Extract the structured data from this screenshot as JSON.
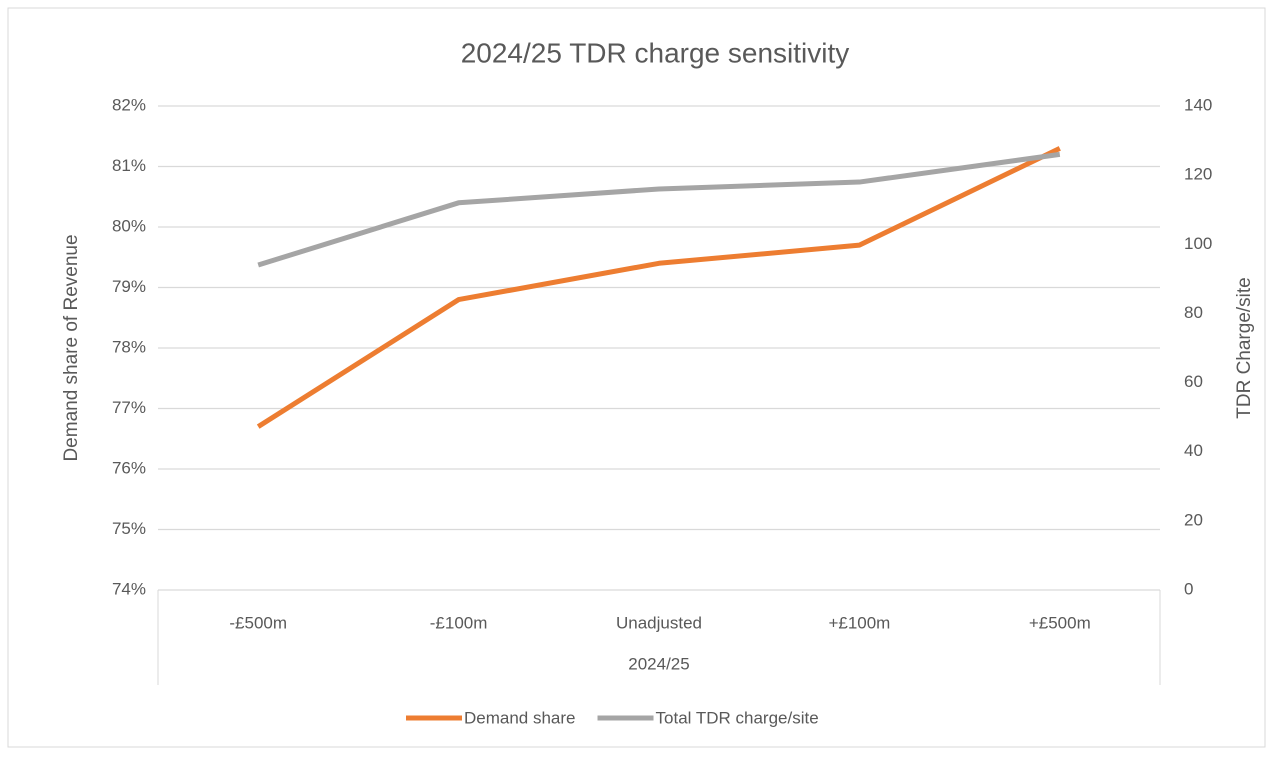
{
  "chart_data": {
    "type": "line",
    "title": "2024/25 TDR charge sensitivity",
    "categories": [
      "-£500m",
      "-£100m",
      "Unadjusted",
      "+£100m",
      "+£500m"
    ],
    "x_axis_label": "2024/25",
    "y_axis_label": "Demand share of Revenue",
    "y2_axis_label": "TDR Charge/site",
    "series": [
      {
        "name": "Demand share",
        "color": "#ed7d31",
        "values": [
          76.7,
          78.8,
          79.4,
          79.7,
          81.3
        ]
      },
      {
        "name": "Total TDR charge/site",
        "color": "#a5a5a5",
        "axis": "y2",
        "values": [
          94,
          112,
          116,
          118,
          126
        ]
      }
    ],
    "ylim": [
      74,
      82
    ],
    "yticks": [
      {
        "value": 74,
        "label": "74%"
      },
      {
        "value": 75,
        "label": "75%"
      },
      {
        "value": 76,
        "label": "76%"
      },
      {
        "value": 77,
        "label": "77%"
      },
      {
        "value": 78,
        "label": "78%"
      },
      {
        "value": 79,
        "label": "79%"
      },
      {
        "value": 80,
        "label": "80%"
      },
      {
        "value": 81,
        "label": "81%"
      },
      {
        "value": 82,
        "label": "82%"
      }
    ],
    "y2lim": [
      0,
      140
    ],
    "y2ticks": [
      0,
      20,
      40,
      60,
      80,
      100,
      120,
      140
    ],
    "grid": true,
    "legend": "bottom"
  }
}
